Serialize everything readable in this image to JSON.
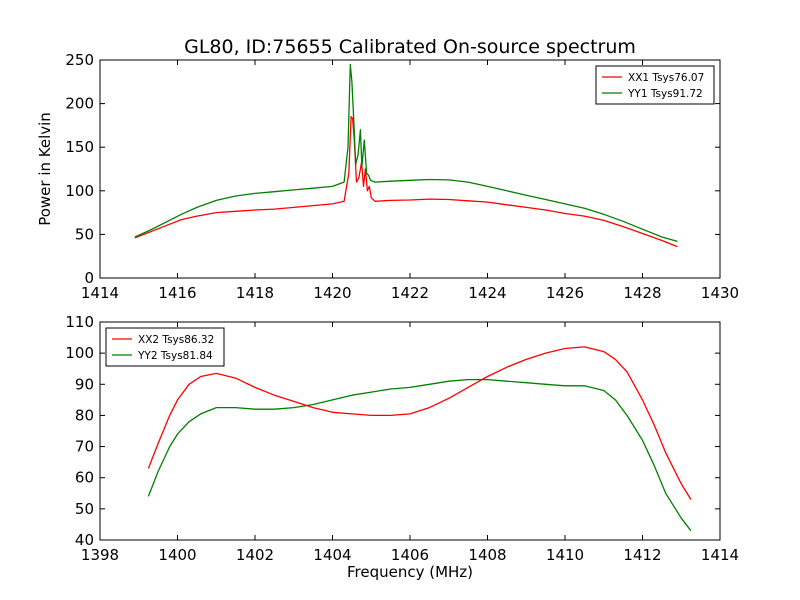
{
  "figure": {
    "title": "GL80, ID:75655 Calibrated On-source spectrum"
  },
  "chart_data": [
    {
      "type": "line",
      "title": "GL80, ID:75655 Calibrated On-source spectrum",
      "xlabel": "",
      "ylabel": "Power in Kelvin",
      "xlim": [
        1414,
        1430
      ],
      "ylim": [
        0,
        250
      ],
      "xticks": [
        1414,
        1416,
        1418,
        1420,
        1422,
        1424,
        1426,
        1428,
        1430
      ],
      "yticks": [
        0,
        50,
        100,
        150,
        200,
        250
      ],
      "grid": false,
      "legend": "top-right",
      "series": [
        {
          "name": "XX1 Tsys76.07",
          "color": "#ff0000",
          "x": [
            1414.9,
            1415.3,
            1415.7,
            1416.1,
            1416.5,
            1417.0,
            1417.5,
            1418.0,
            1418.5,
            1419.0,
            1419.5,
            1420.0,
            1420.3,
            1420.42,
            1420.48,
            1420.52,
            1420.56,
            1420.62,
            1420.68,
            1420.75,
            1420.8,
            1420.85,
            1420.9,
            1420.95,
            1421.0,
            1421.1,
            1421.5,
            1422.0,
            1422.5,
            1423.0,
            1423.5,
            1424.0,
            1424.5,
            1425.0,
            1425.5,
            1426.0,
            1426.5,
            1427.0,
            1427.5,
            1428.0,
            1428.5,
            1428.9
          ],
          "y": [
            46,
            53,
            60,
            67,
            71,
            75,
            76.5,
            78,
            79,
            81,
            83,
            85,
            88,
            120,
            185,
            183,
            160,
            110,
            115,
            133,
            105,
            125,
            100,
            105,
            92,
            88,
            89,
            89.5,
            90.5,
            90,
            88.5,
            87,
            84,
            81,
            78,
            74,
            71,
            66,
            59,
            51,
            43,
            36
          ]
        },
        {
          "name": "YY1 Tsys91.72",
          "color": "#008000",
          "x": [
            1414.9,
            1415.3,
            1415.7,
            1416.1,
            1416.5,
            1417.0,
            1417.5,
            1418.0,
            1418.5,
            1419.0,
            1419.5,
            1420.0,
            1420.3,
            1420.4,
            1420.46,
            1420.5,
            1420.55,
            1420.6,
            1420.66,
            1420.72,
            1420.76,
            1420.82,
            1420.88,
            1420.93,
            1420.98,
            1421.1,
            1421.5,
            1422.0,
            1422.5,
            1423.0,
            1423.5,
            1424.0,
            1424.5,
            1425.0,
            1425.5,
            1426.0,
            1426.5,
            1427.0,
            1427.5,
            1428.0,
            1428.5,
            1428.9
          ],
          "y": [
            47,
            55,
            64,
            73,
            81,
            89,
            94,
            97,
            99,
            101,
            103,
            105,
            110,
            150,
            245,
            225,
            180,
            130,
            142,
            170,
            128,
            158,
            120,
            118,
            112,
            110,
            111,
            112,
            113,
            112.5,
            110,
            105,
            100,
            95,
            90,
            85,
            80,
            73,
            65,
            56,
            47,
            42
          ]
        }
      ]
    },
    {
      "type": "line",
      "title": "",
      "xlabel": "Frequency (MHz)",
      "ylabel": "",
      "xlim": [
        1398,
        1414
      ],
      "ylim": [
        40,
        110
      ],
      "xticks": [
        1398,
        1400,
        1402,
        1404,
        1406,
        1408,
        1410,
        1412,
        1414
      ],
      "yticks": [
        40,
        50,
        60,
        70,
        80,
        90,
        100,
        110
      ],
      "grid": false,
      "legend": "top-left",
      "series": [
        {
          "name": "XX2 Tsys86.32",
          "color": "#ff0000",
          "x": [
            1399.25,
            1399.5,
            1399.8,
            1400.0,
            1400.3,
            1400.6,
            1401.0,
            1401.5,
            1402.0,
            1402.5,
            1403.0,
            1403.5,
            1404.0,
            1404.5,
            1405.0,
            1405.5,
            1406.0,
            1406.5,
            1407.0,
            1407.5,
            1408.0,
            1408.5,
            1409.0,
            1409.5,
            1410.0,
            1410.5,
            1411.0,
            1411.3,
            1411.6,
            1412.0,
            1412.3,
            1412.6,
            1413.0,
            1413.25
          ],
          "y": [
            63,
            71,
            80,
            85,
            90,
            92.5,
            93.5,
            92,
            89,
            86.5,
            84.5,
            82.5,
            81,
            80.5,
            80,
            80,
            80.5,
            82.5,
            85.5,
            89,
            92.5,
            95.5,
            98,
            100,
            101.5,
            102,
            100.5,
            98,
            94,
            85,
            77,
            68,
            58,
            53
          ]
        },
        {
          "name": "YY2 Tsys81.84",
          "color": "#008000",
          "x": [
            1399.25,
            1399.5,
            1399.8,
            1400.0,
            1400.3,
            1400.6,
            1401.0,
            1401.5,
            1402.0,
            1402.5,
            1403.0,
            1403.5,
            1404.0,
            1404.5,
            1405.0,
            1405.5,
            1406.0,
            1406.5,
            1407.0,
            1407.5,
            1408.0,
            1408.5,
            1409.0,
            1409.5,
            1410.0,
            1410.5,
            1411.0,
            1411.3,
            1411.6,
            1412.0,
            1412.3,
            1412.6,
            1413.0,
            1413.25
          ],
          "y": [
            54,
            62,
            70,
            74,
            78,
            80.5,
            82.5,
            82.5,
            82,
            82,
            82.5,
            83.5,
            85,
            86.5,
            87.5,
            88.5,
            89,
            90,
            91,
            91.5,
            91.5,
            91,
            90.5,
            90,
            89.5,
            89.5,
            88,
            85,
            80,
            72,
            64,
            55,
            47,
            43
          ]
        }
      ]
    }
  ]
}
